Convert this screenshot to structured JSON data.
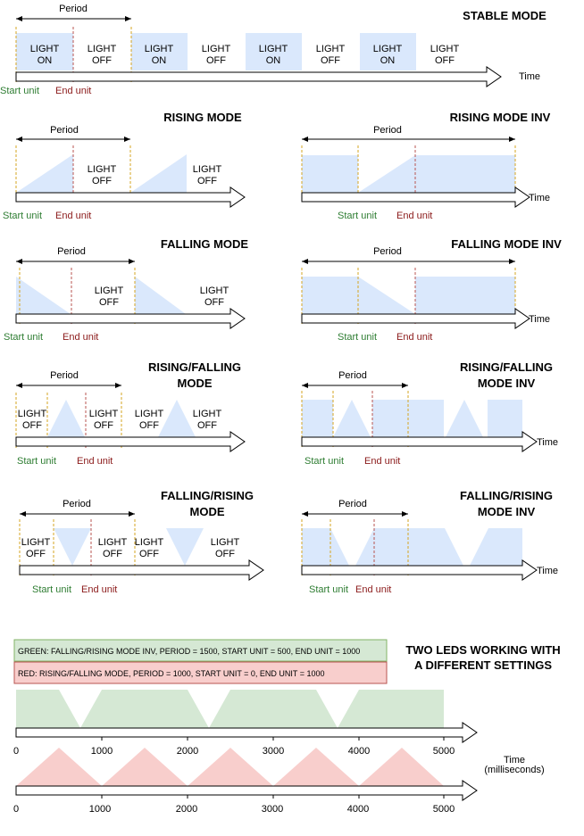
{
  "colors": {
    "blue_fill": "#dae8fc",
    "green_fill": "#d5e8d4",
    "red_fill": "#f8cecc",
    "start_line": "#d6a520",
    "end_line": "#b85450",
    "start_text": "#2e7d32",
    "end_text": "#8b1a1a"
  },
  "labels": {
    "period": "Period",
    "time": "Time",
    "start_unit": "Start unit",
    "end_unit": "End unit",
    "light_on": [
      "LIGHT",
      "ON"
    ],
    "light_off": [
      "LIGHT",
      "OFF"
    ]
  },
  "titles": {
    "stable": "STABLE MODE",
    "rising": "RISING MODE",
    "rising_inv": "RISING MODE INV",
    "falling": "FALLING MODE",
    "falling_inv": "FALLING MODE INV",
    "rising_falling": [
      "RISING/FALLING",
      "MODE"
    ],
    "rising_falling_inv": [
      "RISING/FALLING",
      "MODE INV"
    ],
    "falling_rising": [
      "FALLING/RISING",
      "MODE"
    ],
    "falling_rising_inv": [
      "FALLING/RISING",
      "MODE INV"
    ],
    "two_leds": [
      "TWO LEDS WORKING WITH",
      "A DIFFERENT SETTINGS"
    ]
  },
  "legend": {
    "green": "GREEN: FALLING/RISING MODE INV, PERIOD = 1500, START UNIT = 500, END UNIT = 1000",
    "red": "RED: RISING/FALLING MODE, PERIOD = 1000, START UNIT = 0, END UNIT = 1000"
  },
  "timeline": {
    "ticks": [
      "0",
      "1000",
      "2000",
      "3000",
      "4000",
      "5000"
    ],
    "axis_label": [
      "Time",
      "(milliseconds)"
    ]
  }
}
